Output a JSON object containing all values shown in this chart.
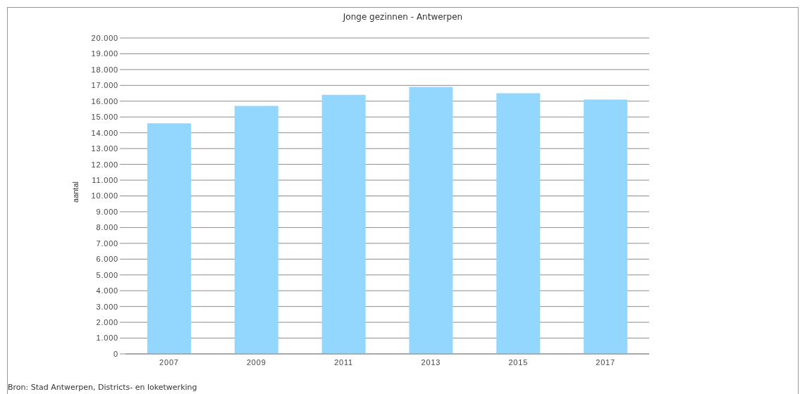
{
  "chart_data": {
    "type": "bar",
    "title": "Jonge gezinnen - Antwerpen",
    "ylabel": "aantal",
    "categories": [
      "2007",
      "2009",
      "2011",
      "2013",
      "2015",
      "2017"
    ],
    "values": [
      14600,
      15700,
      16400,
      16900,
      16500,
      16100
    ],
    "color": "#94d7fe",
    "ylim": [
      0,
      20000
    ],
    "yticks": [
      0,
      {
        "value": 1000,
        "label": "1.000"
      },
      {
        "value": 2000,
        "label": "2.000"
      },
      {
        "value": 3000,
        "label": "3.000"
      },
      {
        "value": 4000,
        "label": "4.000"
      },
      {
        "value": 5000,
        "label": "5.000"
      },
      {
        "value": 6000,
        "label": "6.000"
      },
      {
        "value": 7000,
        "label": "7.000"
      },
      {
        "value": 8000,
        "label": "8.000"
      },
      {
        "value": 9000,
        "label": "9.000"
      },
      {
        "value": 10000,
        "label": "10.000"
      },
      {
        "value": 11000,
        "label": "11.000"
      },
      {
        "value": 12000,
        "label": "12.000"
      },
      {
        "value": 13000,
        "label": "13.000"
      },
      {
        "value": 14000,
        "label": "14.000"
      },
      {
        "value": 15000,
        "label": "15.000"
      },
      {
        "value": 16000,
        "label": "16.000"
      },
      {
        "value": 17000,
        "label": "17.000"
      },
      {
        "value": 18000,
        "label": "18.000"
      },
      {
        "value": 19000,
        "label": "19.000"
      },
      {
        "value": 20000,
        "label": "20.000"
      }
    ],
    "grid": "y",
    "annotations": [
      "Bron: Stad Antwerpen, Districts- en loketwerking"
    ]
  }
}
